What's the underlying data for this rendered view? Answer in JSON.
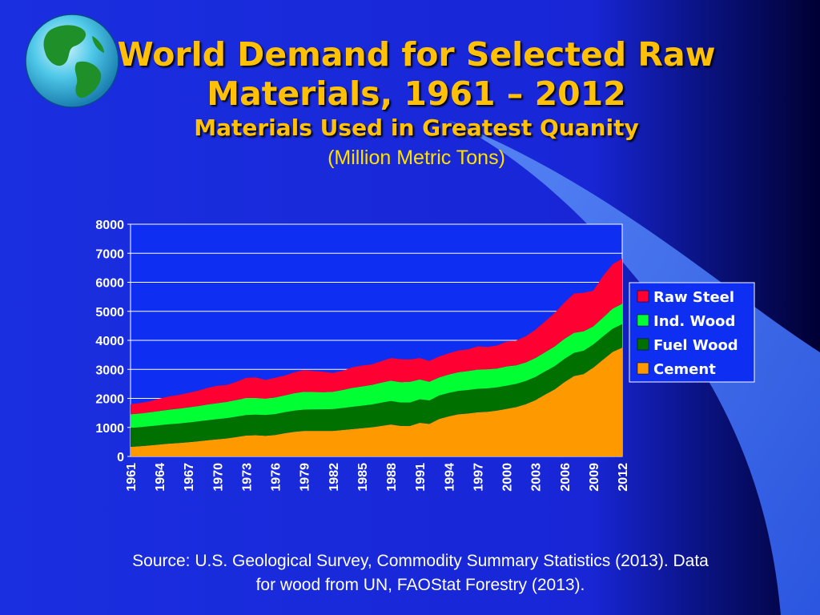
{
  "slide": {
    "title_line1": "World Demand for Selected Raw",
    "title_line2": "Materials, 1961 – 2012",
    "subtitle": "Materials Used in Greatest Quanity",
    "units": "(Million Metric Tons)",
    "source_line1": "Source:  U.S. Geological Survey, Commodity Summary Statistics (2013).  Data",
    "source_line2": "for wood from UN, FAOStat Forestry (2013).",
    "globe_icon": "globe-icon"
  },
  "colors": {
    "background_start": "#1a2fe0",
    "background_end": "#000033",
    "swoosh": "#3d6ef0",
    "plot_area": "#0e2ef2",
    "gridline": "#ffffff",
    "axis_text": "#ffffff",
    "title": "#ffc107"
  },
  "chart_data": {
    "type": "area",
    "stacked": true,
    "title": "",
    "xlabel": "",
    "ylabel": "",
    "ylim": [
      0,
      8000
    ],
    "yticks": [
      "0",
      "1000",
      "2000",
      "3000",
      "4000",
      "5000",
      "6000",
      "7000",
      "8000"
    ],
    "x": [
      1961,
      1962,
      1963,
      1964,
      1965,
      1966,
      1967,
      1968,
      1969,
      1970,
      1971,
      1972,
      1973,
      1974,
      1975,
      1976,
      1977,
      1978,
      1979,
      1980,
      1981,
      1982,
      1983,
      1984,
      1985,
      1986,
      1987,
      1988,
      1989,
      1990,
      1991,
      1992,
      1993,
      1994,
      1995,
      1996,
      1997,
      1998,
      1999,
      2000,
      2001,
      2002,
      2003,
      2004,
      2005,
      2006,
      2007,
      2008,
      2009,
      2010,
      2011,
      2012
    ],
    "xtick_labels": [
      "1961",
      "1964",
      "1967",
      "1970",
      "1973",
      "1976",
      "1979",
      "1982",
      "1985",
      "1988",
      "1991",
      "1994",
      "1997",
      "2000",
      "2003",
      "2006",
      "2009",
      "2012"
    ],
    "legend_position": "right",
    "grid": true,
    "series": [
      {
        "name": "Cement",
        "color": "#ff9900",
        "values": [
          330,
          350,
          380,
          410,
          440,
          460,
          490,
          520,
          560,
          590,
          620,
          670,
          720,
          730,
          710,
          740,
          800,
          850,
          880,
          880,
          880,
          880,
          910,
          940,
          970,
          1000,
          1050,
          1100,
          1050,
          1050,
          1160,
          1120,
          1290,
          1380,
          1450,
          1480,
          1520,
          1540,
          1580,
          1640,
          1700,
          1800,
          1940,
          2130,
          2310,
          2560,
          2770,
          2840,
          3060,
          3330,
          3600,
          3750
        ]
      },
      {
        "name": "Fuel Wood",
        "color": "#007000",
        "values": [
          660,
          660,
          660,
          665,
          670,
          675,
          680,
          685,
          690,
          695,
          700,
          705,
          710,
          710,
          715,
          720,
          725,
          730,
          735,
          740,
          745,
          750,
          760,
          770,
          780,
          790,
          800,
          810,
          810,
          810,
          810,
          810,
          810,
          810,
          810,
          810,
          810,
          805,
          800,
          800,
          800,
          800,
          800,
          800,
          800,
          800,
          800,
          800,
          800,
          800,
          800,
          810
        ]
      },
      {
        "name": "Ind. Wood",
        "color": "#00ff33",
        "values": [
          460,
          470,
          480,
          490,
          500,
          510,
          520,
          530,
          540,
          550,
          560,
          570,
          580,
          570,
          560,
          570,
          580,
          600,
          610,
          600,
          590,
          600,
          620,
          650,
          660,
          670,
          690,
          700,
          700,
          710,
          680,
          640,
          620,
          630,
          640,
          650,
          660,
          650,
          650,
          660,
          640,
          640,
          650,
          660,
          680,
          690,
          690,
          670,
          620,
          650,
          690,
          700
        ]
      },
      {
        "name": "Raw Steel",
        "color": "#ff0033",
        "values": [
          350,
          360,
          380,
          430,
          460,
          470,
          500,
          530,
          570,
          600,
          580,
          630,
          700,
          710,
          650,
          680,
          680,
          720,
          750,
          720,
          700,
          650,
          660,
          710,
          720,
          710,
          740,
          780,
          790,
          770,
          740,
          720,
          720,
          730,
          750,
          750,
          800,
          780,
          790,
          850,
          850,
          900,
          970,
          1060,
          1150,
          1250,
          1350,
          1330,
          1230,
          1430,
          1530,
          1550
        ]
      }
    ]
  }
}
